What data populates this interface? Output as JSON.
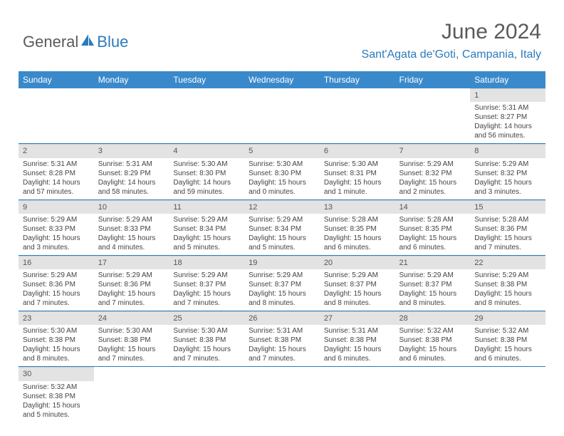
{
  "logo": {
    "text1": "General",
    "text2": "Blue"
  },
  "title": "June 2024",
  "location": "Sant'Agata de'Goti, Campania, Italy",
  "colors": {
    "header_bg": "#3a8acb",
    "accent": "#2b7bbd",
    "daynum_bg": "#e3e3e3",
    "text_muted": "#5a5a5a"
  },
  "weekdays": [
    "Sunday",
    "Monday",
    "Tuesday",
    "Wednesday",
    "Thursday",
    "Friday",
    "Saturday"
  ],
  "weeks": [
    [
      null,
      null,
      null,
      null,
      null,
      null,
      {
        "n": "1",
        "sr": "5:31 AM",
        "ss": "8:27 PM",
        "dl": "14 hours and 56 minutes."
      }
    ],
    [
      {
        "n": "2",
        "sr": "5:31 AM",
        "ss": "8:28 PM",
        "dl": "14 hours and 57 minutes."
      },
      {
        "n": "3",
        "sr": "5:31 AM",
        "ss": "8:29 PM",
        "dl": "14 hours and 58 minutes."
      },
      {
        "n": "4",
        "sr": "5:30 AM",
        "ss": "8:30 PM",
        "dl": "14 hours and 59 minutes."
      },
      {
        "n": "5",
        "sr": "5:30 AM",
        "ss": "8:30 PM",
        "dl": "15 hours and 0 minutes."
      },
      {
        "n": "6",
        "sr": "5:30 AM",
        "ss": "8:31 PM",
        "dl": "15 hours and 1 minute."
      },
      {
        "n": "7",
        "sr": "5:29 AM",
        "ss": "8:32 PM",
        "dl": "15 hours and 2 minutes."
      },
      {
        "n": "8",
        "sr": "5:29 AM",
        "ss": "8:32 PM",
        "dl": "15 hours and 3 minutes."
      }
    ],
    [
      {
        "n": "9",
        "sr": "5:29 AM",
        "ss": "8:33 PM",
        "dl": "15 hours and 3 minutes."
      },
      {
        "n": "10",
        "sr": "5:29 AM",
        "ss": "8:33 PM",
        "dl": "15 hours and 4 minutes."
      },
      {
        "n": "11",
        "sr": "5:29 AM",
        "ss": "8:34 PM",
        "dl": "15 hours and 5 minutes."
      },
      {
        "n": "12",
        "sr": "5:29 AM",
        "ss": "8:34 PM",
        "dl": "15 hours and 5 minutes."
      },
      {
        "n": "13",
        "sr": "5:28 AM",
        "ss": "8:35 PM",
        "dl": "15 hours and 6 minutes."
      },
      {
        "n": "14",
        "sr": "5:28 AM",
        "ss": "8:35 PM",
        "dl": "15 hours and 6 minutes."
      },
      {
        "n": "15",
        "sr": "5:28 AM",
        "ss": "8:36 PM",
        "dl": "15 hours and 7 minutes."
      }
    ],
    [
      {
        "n": "16",
        "sr": "5:29 AM",
        "ss": "8:36 PM",
        "dl": "15 hours and 7 minutes."
      },
      {
        "n": "17",
        "sr": "5:29 AM",
        "ss": "8:36 PM",
        "dl": "15 hours and 7 minutes."
      },
      {
        "n": "18",
        "sr": "5:29 AM",
        "ss": "8:37 PM",
        "dl": "15 hours and 7 minutes."
      },
      {
        "n": "19",
        "sr": "5:29 AM",
        "ss": "8:37 PM",
        "dl": "15 hours and 8 minutes."
      },
      {
        "n": "20",
        "sr": "5:29 AM",
        "ss": "8:37 PM",
        "dl": "15 hours and 8 minutes."
      },
      {
        "n": "21",
        "sr": "5:29 AM",
        "ss": "8:37 PM",
        "dl": "15 hours and 8 minutes."
      },
      {
        "n": "22",
        "sr": "5:29 AM",
        "ss": "8:38 PM",
        "dl": "15 hours and 8 minutes."
      }
    ],
    [
      {
        "n": "23",
        "sr": "5:30 AM",
        "ss": "8:38 PM",
        "dl": "15 hours and 8 minutes."
      },
      {
        "n": "24",
        "sr": "5:30 AM",
        "ss": "8:38 PM",
        "dl": "15 hours and 7 minutes."
      },
      {
        "n": "25",
        "sr": "5:30 AM",
        "ss": "8:38 PM",
        "dl": "15 hours and 7 minutes."
      },
      {
        "n": "26",
        "sr": "5:31 AM",
        "ss": "8:38 PM",
        "dl": "15 hours and 7 minutes."
      },
      {
        "n": "27",
        "sr": "5:31 AM",
        "ss": "8:38 PM",
        "dl": "15 hours and 6 minutes."
      },
      {
        "n": "28",
        "sr": "5:32 AM",
        "ss": "8:38 PM",
        "dl": "15 hours and 6 minutes."
      },
      {
        "n": "29",
        "sr": "5:32 AM",
        "ss": "8:38 PM",
        "dl": "15 hours and 6 minutes."
      }
    ],
    [
      {
        "n": "30",
        "sr": "5:32 AM",
        "ss": "8:38 PM",
        "dl": "15 hours and 5 minutes."
      },
      null,
      null,
      null,
      null,
      null,
      null
    ]
  ],
  "labels": {
    "sunrise": "Sunrise: ",
    "sunset": "Sunset: ",
    "daylight": "Daylight: "
  }
}
